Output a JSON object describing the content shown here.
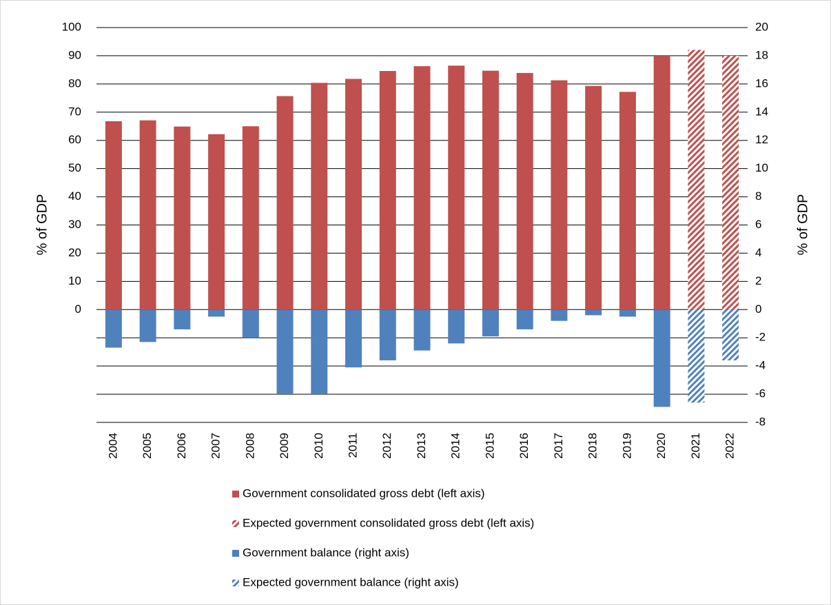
{
  "chart_data": {
    "type": "bar",
    "y_label": "% of GDP",
    "y2_label": "% of GDP",
    "categories": [
      "2004",
      "2005",
      "2006",
      "2007",
      "2008",
      "2009",
      "2010",
      "2011",
      "2012",
      "2013",
      "2014",
      "2015",
      "2016",
      "2017",
      "2018",
      "2019",
      "2020",
      "2021",
      "2022"
    ],
    "ylim": [
      -40,
      100
    ],
    "yticks": [
      0,
      10,
      20,
      30,
      40,
      50,
      60,
      70,
      80,
      90,
      100
    ],
    "y2lim": [
      -8,
      20
    ],
    "y2ticks": [
      -8,
      -6,
      -4,
      -2,
      0,
      2,
      4,
      6,
      8,
      10,
      12,
      14,
      16,
      18,
      20
    ],
    "grid": true,
    "series": [
      {
        "name": "Government consolidated gross debt (left axis)",
        "color": "#c0504d",
        "hatched": false,
        "values": [
          66.8,
          67.1,
          64.9,
          62.2,
          65.0,
          75.7,
          80.4,
          81.8,
          84.6,
          86.3,
          86.5,
          84.7,
          83.9,
          81.3,
          79.3,
          77.2,
          90.0,
          null,
          null
        ]
      },
      {
        "name": "Expected government consolidated gross debt (left axis)",
        "color": "#c0504d",
        "hatched": true,
        "values": [
          null,
          null,
          null,
          null,
          null,
          null,
          null,
          null,
          null,
          null,
          null,
          null,
          null,
          null,
          null,
          null,
          null,
          92.1,
          90.0
        ]
      },
      {
        "name": "Government balance (right axis)",
        "color": "#4f81bd",
        "hatched": false,
        "axis": "y2",
        "values": [
          -2.7,
          -2.3,
          -1.4,
          -0.5,
          -2.0,
          -6.0,
          -6.0,
          -4.1,
          -3.6,
          -2.9,
          -2.4,
          -1.9,
          -1.4,
          -0.8,
          -0.4,
          -0.5,
          -6.9,
          null,
          null
        ]
      },
      {
        "name": "Expected government balance (right axis)",
        "color": "#4f81bd",
        "hatched": true,
        "axis": "y2",
        "values": [
          null,
          null,
          null,
          null,
          null,
          null,
          null,
          null,
          null,
          null,
          null,
          null,
          null,
          null,
          null,
          null,
          null,
          -6.6,
          -3.6
        ]
      }
    ]
  }
}
